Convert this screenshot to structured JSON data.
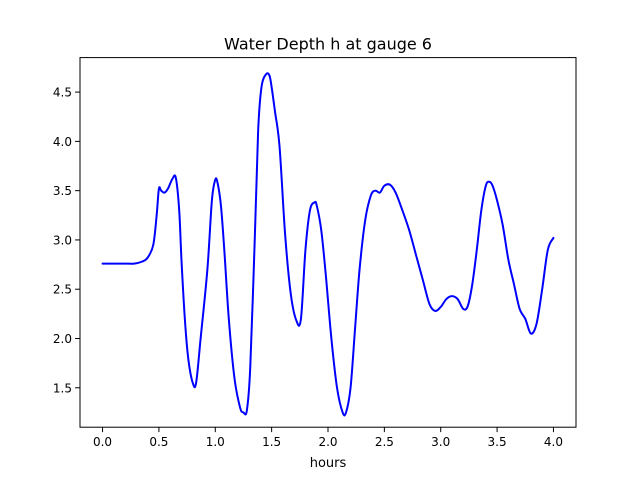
{
  "chart_data": {
    "type": "line",
    "title": "Water Depth h at gauge 6",
    "xlabel": "hours",
    "ylabel": "",
    "xlim": [
      -0.2,
      4.2
    ],
    "ylim": [
      1.1,
      4.85
    ],
    "xticks": [
      0.0,
      0.5,
      1.0,
      1.5,
      2.0,
      2.5,
      3.0,
      3.5,
      4.0
    ],
    "xtick_labels": [
      "0.0",
      "0.5",
      "1.0",
      "1.5",
      "2.0",
      "2.5",
      "3.0",
      "3.5",
      "4.0"
    ],
    "yticks": [
      1.5,
      2.0,
      2.5,
      3.0,
      3.5,
      4.0,
      4.5
    ],
    "ytick_labels": [
      "1.5",
      "2.0",
      "2.5",
      "3.0",
      "3.5",
      "4.0",
      "4.5"
    ],
    "grid": false,
    "series": [
      {
        "color": "#0000ff",
        "x": [
          0.0,
          0.1,
          0.2,
          0.28,
          0.35,
          0.4,
          0.45,
          0.48,
          0.5,
          0.52,
          0.55,
          0.58,
          0.62,
          0.65,
          0.68,
          0.7,
          0.73,
          0.76,
          0.8,
          0.83,
          0.87,
          0.93,
          0.97,
          1.0,
          1.02,
          1.05,
          1.08,
          1.12,
          1.17,
          1.22,
          1.25,
          1.28,
          1.31,
          1.35,
          1.38,
          1.41,
          1.45,
          1.48,
          1.5,
          1.53,
          1.57,
          1.62,
          1.67,
          1.72,
          1.76,
          1.8,
          1.84,
          1.88,
          1.9,
          1.94,
          1.98,
          2.03,
          2.08,
          2.13,
          2.16,
          2.2,
          2.24,
          2.28,
          2.33,
          2.38,
          2.42,
          2.46,
          2.5,
          2.55,
          2.6,
          2.66,
          2.72,
          2.78,
          2.84,
          2.9,
          2.95,
          3.0,
          3.05,
          3.1,
          3.15,
          3.2,
          3.24,
          3.28,
          3.32,
          3.36,
          3.4,
          3.43,
          3.46,
          3.5,
          3.55,
          3.6,
          3.65,
          3.7,
          3.75,
          3.8,
          3.85,
          3.9,
          3.95,
          4.0
        ],
        "y": [
          2.76,
          2.76,
          2.76,
          2.76,
          2.78,
          2.82,
          2.95,
          3.25,
          3.52,
          3.5,
          3.48,
          3.52,
          3.62,
          3.63,
          3.3,
          2.8,
          2.2,
          1.8,
          1.55,
          1.55,
          2.0,
          2.7,
          3.4,
          3.61,
          3.58,
          3.35,
          2.9,
          2.2,
          1.6,
          1.3,
          1.25,
          1.27,
          1.7,
          3.0,
          4.1,
          4.55,
          4.68,
          4.67,
          4.55,
          4.3,
          3.95,
          3.05,
          2.45,
          2.18,
          2.2,
          2.9,
          3.3,
          3.38,
          3.35,
          3.1,
          2.65,
          2.0,
          1.5,
          1.25,
          1.25,
          1.5,
          2.1,
          2.7,
          3.2,
          3.45,
          3.5,
          3.48,
          3.55,
          3.56,
          3.48,
          3.3,
          3.1,
          2.85,
          2.6,
          2.35,
          2.28,
          2.32,
          2.4,
          2.43,
          2.4,
          2.3,
          2.33,
          2.55,
          2.9,
          3.3,
          3.55,
          3.59,
          3.55,
          3.4,
          3.15,
          2.8,
          2.55,
          2.3,
          2.2,
          2.05,
          2.15,
          2.5,
          2.9,
          3.02
        ]
      }
    ]
  }
}
